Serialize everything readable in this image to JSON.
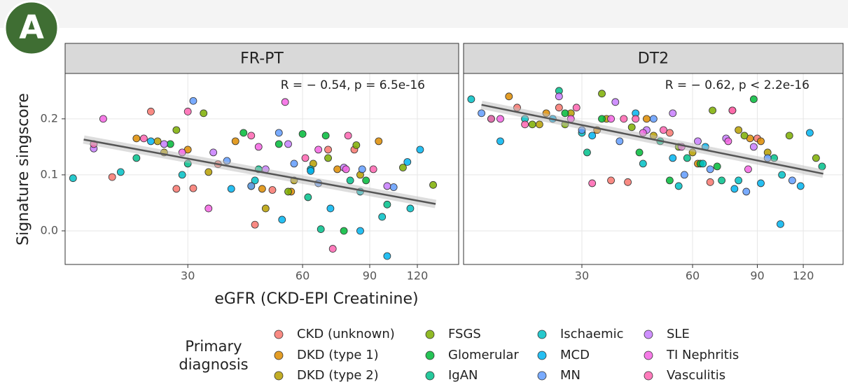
{
  "label": "A",
  "x_label": "eGFR (CKD-EPI Creatinine)",
  "y_label": "Signature singscore",
  "legend": {
    "title": [
      "Primary",
      "diagnosis"
    ],
    "names": [
      "CKD (unknown)",
      "DKD (type 1)",
      "DKD (type 2)",
      "FSGS",
      "Glomerular",
      "IgAN",
      "Ischaemic",
      "MCD",
      "MN",
      "SLE",
      "TI Nephritis",
      "Vasculitis"
    ]
  },
  "chart_data": [
    {
      "type": "scatter",
      "title": "FR-PT",
      "annotation": "R = − 0.54, p = 6.5e-16",
      "log_x": true,
      "grid": true,
      "xlim": [
        14.3,
        154
      ],
      "xticks": [
        30,
        60,
        90,
        120
      ],
      "ylim": [
        -0.06,
        0.281
      ],
      "yticks": [
        {
          "value": 0,
          "label": "0.0"
        },
        {
          "value": 0.1,
          "label": "0.1"
        },
        {
          "value": 0.2,
          "label": "0.2"
        }
      ],
      "fit": {
        "x": [
          16,
          134
        ],
        "values": [
          0.163,
          0.048
        ]
      },
      "series": [
        {
          "color": "#f8766d",
          "x": [
            19,
            24,
            31,
            36,
            45,
            50,
            70,
            82,
            28
          ],
          "values": [
            0.096,
            0.213,
            0.076,
            0.119,
            0.011,
            0.073,
            0.145,
            0.145,
            0.075
          ]
        },
        {
          "color": "#de8c00",
          "x": [
            30,
            40,
            47,
            56,
            74,
            95,
            22
          ],
          "values": [
            0.145,
            0.16,
            0.075,
            0.07,
            0.11,
            0.16,
            0.165
          ]
        },
        {
          "color": "#b79f00",
          "x": [
            25,
            34,
            48,
            57,
            64,
            85,
            26
          ],
          "values": [
            0.16,
            0.105,
            0.04,
            0.09,
            0.12,
            0.1,
            0.14
          ]
        },
        {
          "color": "#7cae00",
          "x": [
            28,
            33,
            44,
            55,
            70,
            83,
            110,
            132
          ],
          "values": [
            0.18,
            0.21,
            0.08,
            0.07,
            0.13,
            0.153,
            0.113,
            0.082
          ]
        },
        {
          "color": "#00ba38",
          "x": [
            27,
            42,
            52,
            60,
            69,
            77,
            88
          ],
          "values": [
            0.155,
            0.175,
            0.155,
            0.173,
            0.17,
            0.0,
            0.09
          ]
        },
        {
          "color": "#00c08b",
          "x": [
            22,
            30,
            46,
            62,
            67,
            80,
            100
          ],
          "values": [
            0.13,
            0.12,
            0.11,
            0.06,
            0.003,
            0.09,
            0.047
          ]
        },
        {
          "color": "#00bfc4",
          "x": [
            15,
            20,
            29,
            45,
            63,
            85,
            97,
            115
          ],
          "values": [
            0.094,
            0.105,
            0.1,
            0.09,
            0.11,
            0.07,
            0.025,
            0.04
          ]
        },
        {
          "color": "#00b4f0",
          "x": [
            24,
            39,
            53,
            63,
            71,
            85,
            100,
            113,
            122
          ],
          "values": [
            0.16,
            0.075,
            0.02,
            0.107,
            0.04,
            0.0,
            -0.045,
            0.123,
            0.145
          ]
        },
        {
          "color": "#619cff",
          "x": [
            31,
            38,
            44,
            52,
            57,
            66,
            86,
            104
          ],
          "values": [
            0.232,
            0.125,
            0.08,
            0.175,
            0.12,
            0.085,
            0.11,
            0.078
          ]
        },
        {
          "color": "#c77cff",
          "x": [
            17,
            26,
            35,
            48,
            55,
            77,
            100
          ],
          "values": [
            0.147,
            0.155,
            0.14,
            0.11,
            0.155,
            0.113,
            0.08
          ]
        },
        {
          "color": "#f564e3",
          "x": [
            18,
            29,
            34,
            46,
            54,
            66,
            78
          ],
          "values": [
            0.2,
            0.14,
            0.04,
            0.15,
            0.23,
            0.145,
            0.11
          ]
        },
        {
          "color": "#ff64b0",
          "x": [
            17,
            23,
            30,
            44,
            61,
            72,
            79,
            92
          ],
          "values": [
            0.155,
            0.165,
            0.213,
            0.17,
            0.13,
            -0.032,
            0.17,
            0.11
          ]
        }
      ]
    },
    {
      "type": "scatter",
      "title": "DT2",
      "annotation": "R = − 0.62, p < 2.2e-16",
      "log_x": true,
      "grid": true,
      "xlim": [
        14.3,
        154
      ],
      "xticks": [
        30,
        60,
        90,
        120
      ],
      "ylim": [
        -0.06,
        0.281
      ],
      "yticks": [
        0,
        0.1,
        0.2
      ],
      "fit": {
        "x": [
          16,
          136
        ],
        "values": [
          0.225,
          0.102
        ]
      },
      "series": [
        {
          "color": "#f8766d",
          "x": [
            20,
            26,
            36,
            40,
            52,
            67,
            77,
            90
          ],
          "values": [
            0.22,
            0.22,
            0.09,
            0.087,
            0.175,
            0.087,
            0.215,
            0.165
          ]
        },
        {
          "color": "#de8c00",
          "x": [
            19,
            24,
            33,
            45,
            62,
            86,
            92
          ],
          "values": [
            0.24,
            0.21,
            0.18,
            0.2,
            0.12,
            0.165,
            0.16
          ]
        },
        {
          "color": "#b79f00",
          "x": [
            23,
            28,
            35,
            47,
            60,
            80,
            96
          ],
          "values": [
            0.19,
            0.21,
            0.2,
            0.17,
            0.14,
            0.18,
            0.14
          ]
        },
        {
          "color": "#7cae00",
          "x": [
            22,
            27,
            34,
            41,
            55,
            68,
            83,
            110,
            130
          ],
          "values": [
            0.19,
            0.19,
            0.245,
            0.185,
            0.15,
            0.215,
            0.17,
            0.17,
            0.13
          ]
        },
        {
          "color": "#00ba38",
          "x": [
            27,
            34,
            43,
            52,
            63,
            70,
            88
          ],
          "values": [
            0.21,
            0.2,
            0.14,
            0.09,
            0.12,
            0.115,
            0.235
          ]
        },
        {
          "color": "#00c08b",
          "x": [
            17,
            26,
            31,
            49,
            58,
            72,
            100,
            135
          ],
          "values": [
            0.2,
            0.25,
            0.14,
            0.16,
            0.13,
            0.09,
            0.13,
            0.115
          ]
        },
        {
          "color": "#00bfc4",
          "x": [
            15,
            21,
            30,
            44,
            55,
            64,
            80,
            105
          ],
          "values": [
            0.235,
            0.2,
            0.175,
            0.12,
            0.08,
            0.12,
            0.09,
            0.1
          ]
        },
        {
          "color": "#00b4f0",
          "x": [
            18,
            25,
            32,
            42,
            53,
            65,
            78,
            92,
            104,
            118,
            125
          ],
          "values": [
            0.16,
            0.2,
            0.17,
            0.21,
            0.13,
            0.15,
            0.075,
            0.085,
            0.012,
            0.08,
            0.175
          ]
        },
        {
          "color": "#619cff",
          "x": [
            16,
            30,
            38,
            47,
            57,
            67,
            84,
            96,
            112
          ],
          "values": [
            0.21,
            0.18,
            0.16,
            0.2,
            0.1,
            0.11,
            0.07,
            0.13,
            0.09
          ]
        },
        {
          "color": "#c77cff",
          "x": [
            26,
            37,
            45,
            53,
            62,
            74,
            88
          ],
          "values": [
            0.24,
            0.23,
            0.18,
            0.21,
            0.16,
            0.165,
            0.15
          ]
        },
        {
          "color": "#f564e3",
          "x": [
            18,
            28,
            36,
            44,
            56,
            75,
            85
          ],
          "values": [
            0.2,
            0.2,
            0.2,
            0.175,
            0.15,
            0.16,
            0.11
          ]
        },
        {
          "color": "#ff64b0",
          "x": [
            17,
            21,
            29,
            32,
            39,
            42,
            50,
            77
          ],
          "values": [
            0.2,
            0.19,
            0.22,
            0.085,
            0.2,
            0.2,
            0.18,
            0.215
          ]
        }
      ]
    }
  ]
}
